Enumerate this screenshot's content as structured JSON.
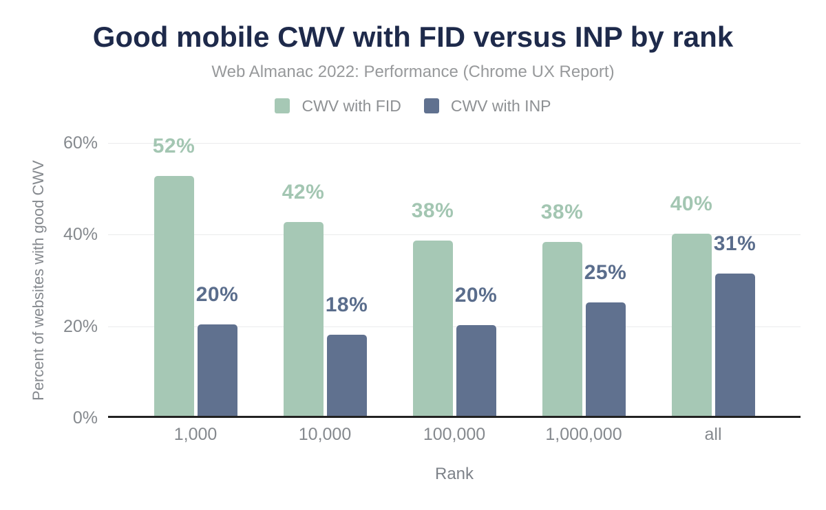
{
  "colors": {
    "title": "#1e2a4b",
    "subtitle_gray": "#97999b",
    "axis_gray": "#85898e",
    "fid_green": "#a6c8b5",
    "inp_slate": "#60718f",
    "fid_label_green": "#a3c6b2",
    "inp_label_slate": "#5a6d8c",
    "baseline": "#212121",
    "gridline": "#eaebec"
  },
  "chart_data": {
    "type": "bar",
    "title": "Good mobile CWV with FID versus INP by rank",
    "subtitle": "Web Almanac 2022: Performance (Chrome UX Report)",
    "xlabel": "Rank",
    "ylabel": "Percent of websites with good CWV",
    "categories": [
      "1,000",
      "10,000",
      "100,000",
      "1,000,000",
      "all"
    ],
    "series": [
      {
        "name": "CWV with FID",
        "color": "#a6c8b5",
        "label_color": "#a3c6b2",
        "values": [
          52.4,
          42.3,
          38.2,
          37.9,
          39.8
        ],
        "labels": [
          "52%",
          "42%",
          "38%",
          "38%",
          "40%"
        ]
      },
      {
        "name": "CWV with INP",
        "color": "#60718f",
        "label_color": "#5a6d8c",
        "values": [
          20.0,
          17.7,
          19.8,
          24.8,
          31.0
        ],
        "labels": [
          "20%",
          "18%",
          "20%",
          "25%",
          "31%"
        ]
      }
    ],
    "ylim": [
      0,
      60
    ],
    "yticks": [
      "0%",
      "20%",
      "40%",
      "60%"
    ],
    "grid": true,
    "legend_position": "top"
  }
}
